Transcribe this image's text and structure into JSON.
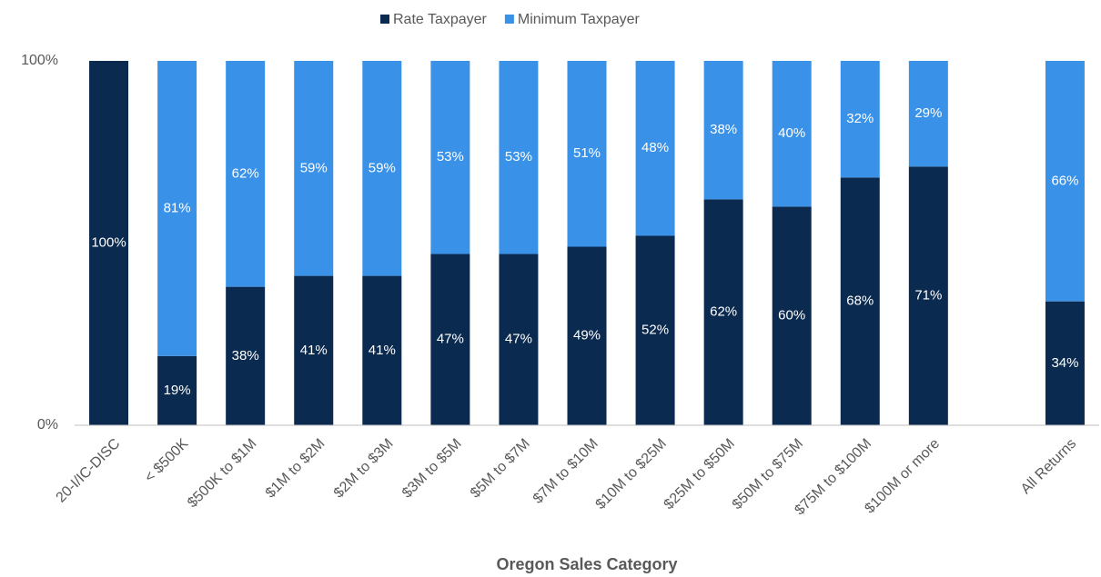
{
  "chart_data": {
    "type": "stacked_bar",
    "x_label": "Oregon Sales Category",
    "categories": [
      "20-I/IC-DISC",
      "< $500K",
      "$500K to $1M",
      "$1M to $2M",
      "$2M to $3M",
      "$3M to $5M",
      "$5M to $7M",
      "$7M to $10M",
      "$10M to $25M",
      "$25M to $50M",
      "$50M to $75M",
      "$75M to $100M",
      "$100M or more",
      null,
      "All Returns"
    ],
    "series": [
      {
        "name": "Rate Taxpayer",
        "color": "#0b2a4f",
        "values": [
          100,
          19,
          38,
          41,
          41,
          47,
          47,
          49,
          52,
          62,
          60,
          68,
          71,
          null,
          34
        ],
        "value_labels": [
          "100%",
          "19%",
          "38%",
          "41%",
          "41%",
          "47%",
          "47%",
          "49%",
          "52%",
          "62%",
          "60%",
          "68%",
          "71%",
          null,
          "34%"
        ]
      },
      {
        "name": "Minimum Taxpayer",
        "color": "#3a92e8",
        "values": [
          0,
          81,
          62,
          59,
          59,
          53,
          53,
          51,
          48,
          38,
          40,
          32,
          29,
          null,
          66
        ],
        "value_labels": [
          null,
          "81%",
          "62%",
          "59%",
          "59%",
          "53%",
          "53%",
          "51%",
          "48%",
          "38%",
          "40%",
          "32%",
          "29%",
          null,
          "66%"
        ]
      }
    ],
    "ylim": [
      0,
      100
    ],
    "yticks": [
      {
        "value": 0,
        "label": "0%"
      },
      {
        "value": 100,
        "label": "100%"
      }
    ],
    "legend": "top",
    "grid": false
  }
}
